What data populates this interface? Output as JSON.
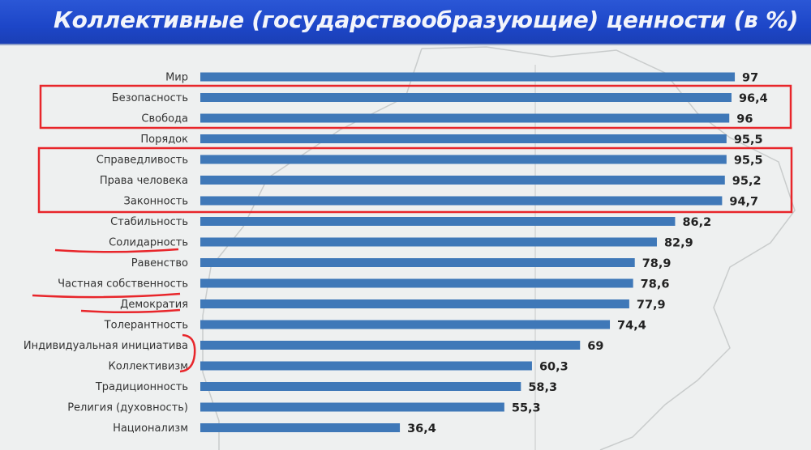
{
  "chart_data": {
    "type": "bar",
    "orientation": "horizontal",
    "title": "Коллективные (государствообразующие) ценности (в %)",
    "xlabel": "",
    "ylabel": "",
    "xlim": [
      0,
      100
    ],
    "grid": false,
    "categories": [
      "Мир",
      "Безопасность",
      "Свобода",
      "Порядок",
      "Справедливость",
      "Права человека",
      "Законность",
      "Стабильность",
      "Солидарность",
      "Равенство",
      "Частная собственность",
      "Демократия",
      "Толерантность",
      "Индивидуальная инициатива",
      "Коллективизм",
      "Традиционность",
      "Религия (духовность)",
      "Национализм"
    ],
    "values": [
      97,
      96.4,
      96,
      95.5,
      95.5,
      95.2,
      94.7,
      86.2,
      82.9,
      78.9,
      78.6,
      77.9,
      74.4,
      69,
      60.3,
      58.3,
      55.3,
      36.4
    ],
    "value_labels": [
      "97",
      "96,4",
      "96",
      "95,5",
      "95,5",
      "95,2",
      "94,7",
      "86,2",
      "82,9",
      "78,9",
      "78,6",
      "77,9",
      "74,4",
      "69",
      "60,3",
      "58,3",
      "55,3",
      "36,4"
    ],
    "colors": {
      "bar": "#3f78b8",
      "annotation": "#e8262b",
      "title_bg": "#1f49c9"
    }
  }
}
